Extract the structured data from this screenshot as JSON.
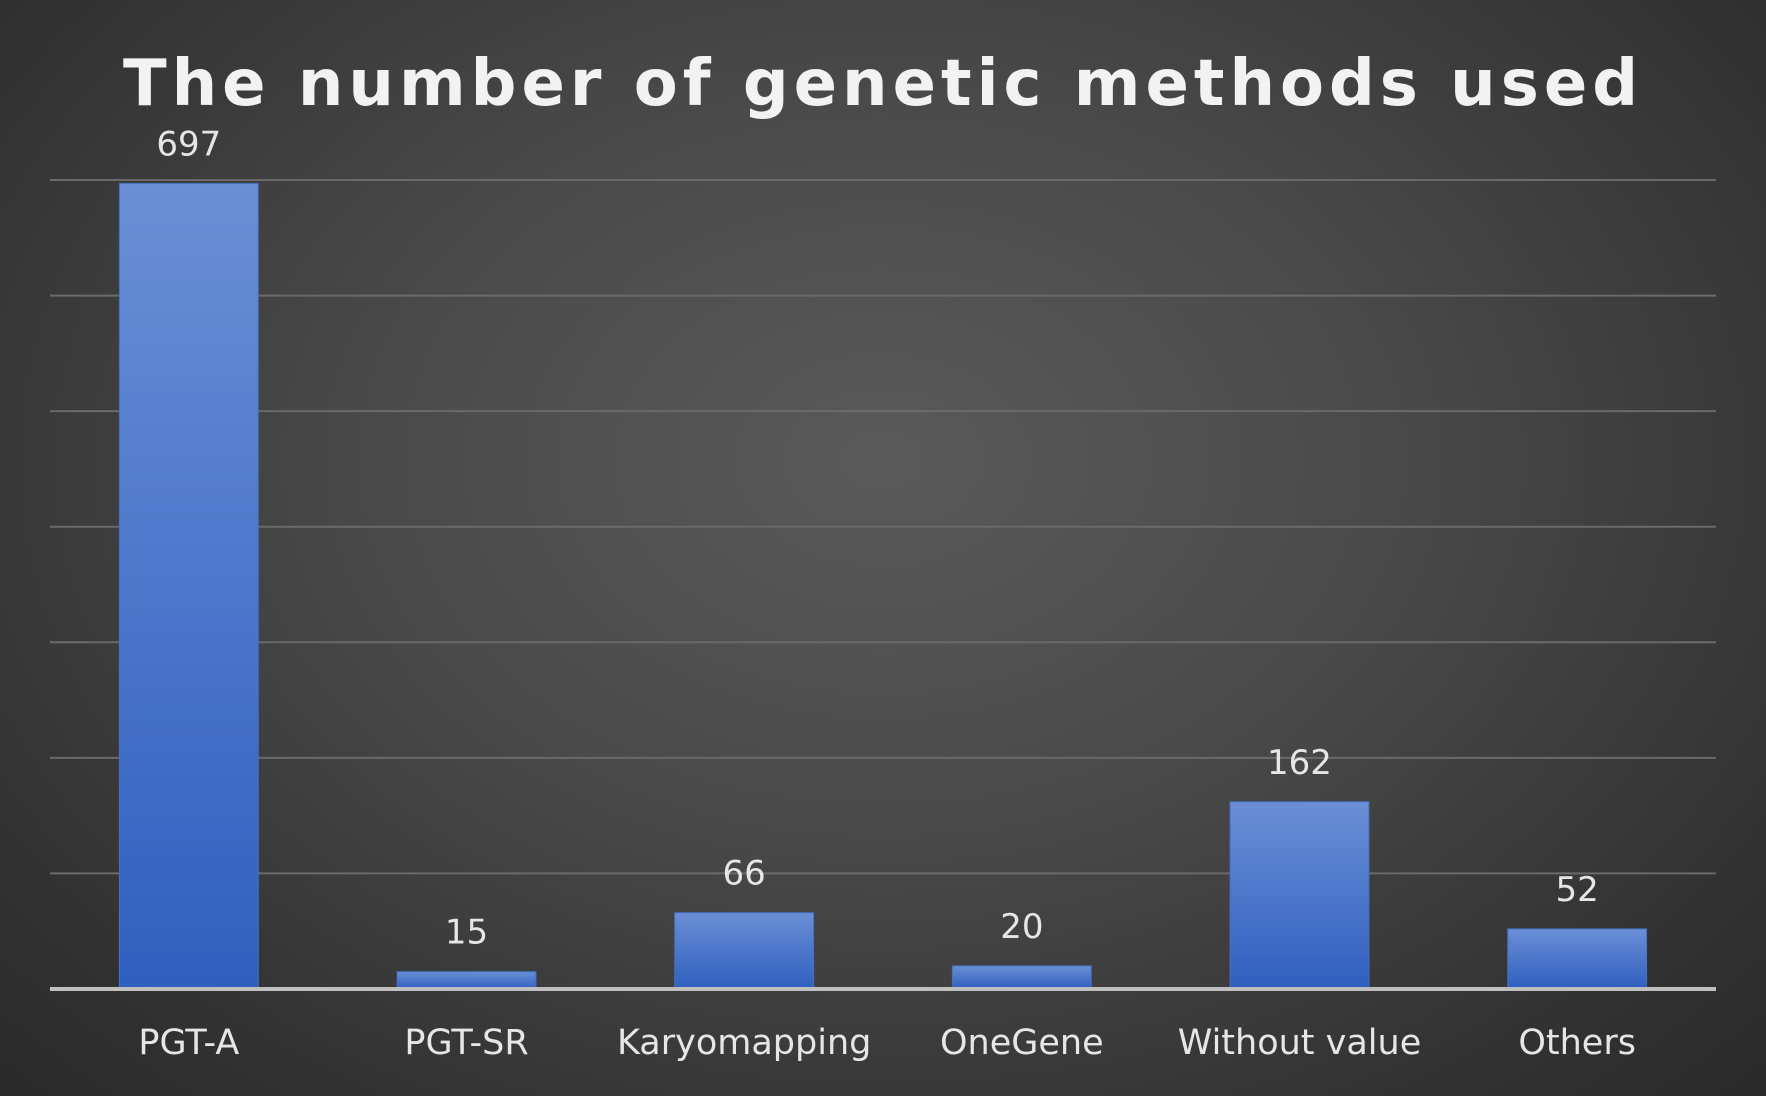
{
  "chart_data": {
    "type": "bar",
    "title": "The number of genetic methods used",
    "categories": [
      "PGT-A",
      "PGT-SR",
      "Karyomapping",
      "OneGene",
      "Without value",
      "Others"
    ],
    "values": [
      697,
      15,
      66,
      20,
      162,
      52
    ],
    "ylim": [
      0,
      700
    ],
    "grid": true,
    "gridline_step": 100,
    "legend": "none",
    "bar_color": "#4472c4",
    "bar_color_light": "#6a8fd6",
    "bar_color_dark": "#2f5fbf"
  }
}
